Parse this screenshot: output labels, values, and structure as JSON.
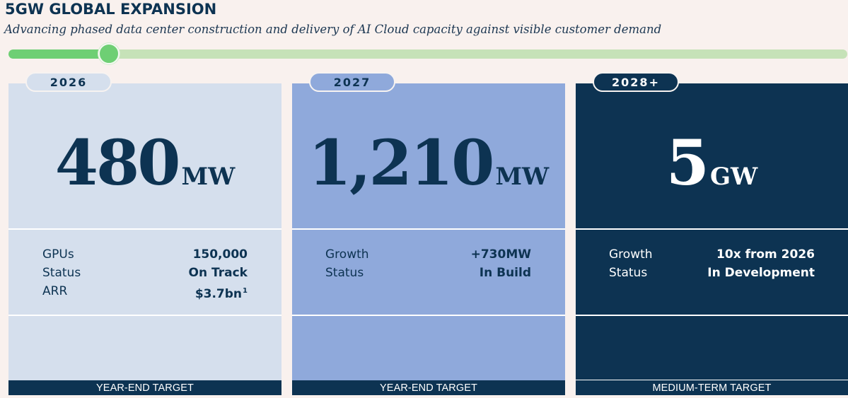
{
  "header": {
    "title": "5GW GLOBAL EXPANSION",
    "subtitle": "Advancing phased data center construction and delivery of AI Cloud capacity against visible customer demand"
  },
  "timeline": {
    "progress_fraction": 0.12
  },
  "colors": {
    "background": "#f9f1ee",
    "navy": "#0d3352",
    "card_2026": "#d5dfed",
    "card_2027": "#8fa9db",
    "card_2028": "#0d3352",
    "progress_fill": "#6ecf74",
    "progress_track": "#c6e2b8"
  },
  "cards": [
    {
      "year": "2026",
      "value": "480",
      "unit": "MW",
      "rows": [
        {
          "label": "GPUs",
          "value": "150,000",
          "sup": ""
        },
        {
          "label": "Status",
          "value": "On Track",
          "sup": ""
        },
        {
          "label": "ARR",
          "value": "$3.7bn",
          "sup": "1"
        }
      ],
      "footer": "YEAR-END TARGET"
    },
    {
      "year": "2027",
      "value": "1,210",
      "unit": "MW",
      "rows": [
        {
          "label": "Growth",
          "value": "+730MW",
          "sup": ""
        },
        {
          "label": "Status",
          "value": "In Build",
          "sup": ""
        }
      ],
      "footer": "YEAR-END TARGET"
    },
    {
      "year": "2028+",
      "value": "5",
      "unit": "GW",
      "rows": [
        {
          "label": "Growth",
          "value": "10x from 2026",
          "sup": ""
        },
        {
          "label": "Status",
          "value": "In Development",
          "sup": ""
        }
      ],
      "footer": "MEDIUM-TERM TARGET"
    }
  ]
}
